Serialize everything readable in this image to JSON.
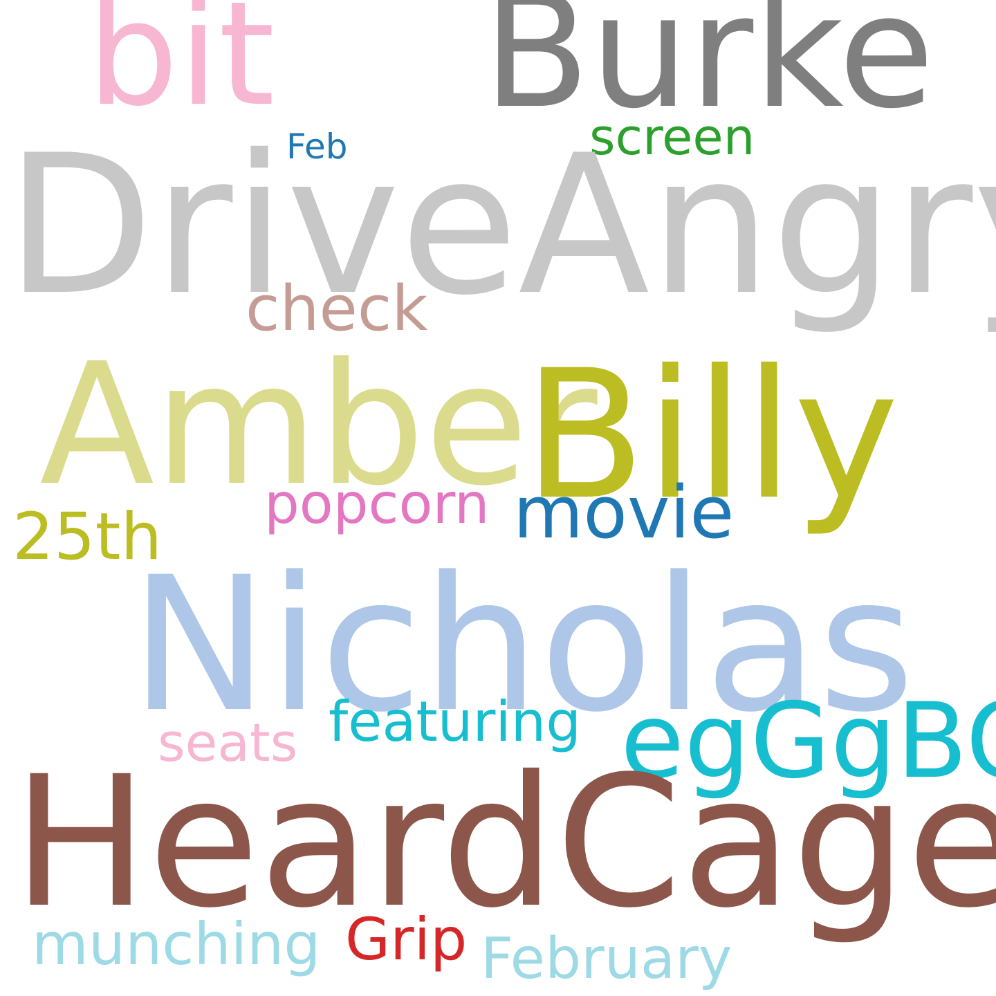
{
  "words": {
    "bit": {
      "text": "bit",
      "color": "#f7b6d2"
    },
    "burke": {
      "text": "Burke",
      "color": "#7f7f7f"
    },
    "feb": {
      "text": "Feb",
      "color": "#1f77b4"
    },
    "screen": {
      "text": "screen",
      "color": "#2ca02c"
    },
    "driveangry": {
      "text": "DriveAngry",
      "color": "#c7c7c7"
    },
    "check": {
      "text": "check",
      "color": "#c49c94"
    },
    "amber": {
      "text": "Amber",
      "color": "#dbdb8d"
    },
    "billy": {
      "text": "Billy",
      "color": "#bcbd22"
    },
    "popcorn": {
      "text": "popcorn",
      "color": "#e377c2"
    },
    "movie": {
      "text": "movie",
      "color": "#1f77b4"
    },
    "25th": {
      "text": "25th",
      "color": "#bcbd22"
    },
    "nicholas": {
      "text": "Nicholas",
      "color": "#aec7e8"
    },
    "featuring": {
      "text": "featuring",
      "color": "#17becf"
    },
    "egggbo": {
      "text": "egGgBO",
      "color": "#17becf"
    },
    "seats": {
      "text": "seats",
      "color": "#f7b6d2"
    },
    "heardcage": {
      "text": "HeardCage",
      "color": "#8c564b"
    },
    "munching": {
      "text": "munching",
      "color": "#9edae5"
    },
    "grip": {
      "text": "Grip",
      "color": "#d62728"
    },
    "february": {
      "text": "February",
      "color": "#9edae5"
    }
  }
}
